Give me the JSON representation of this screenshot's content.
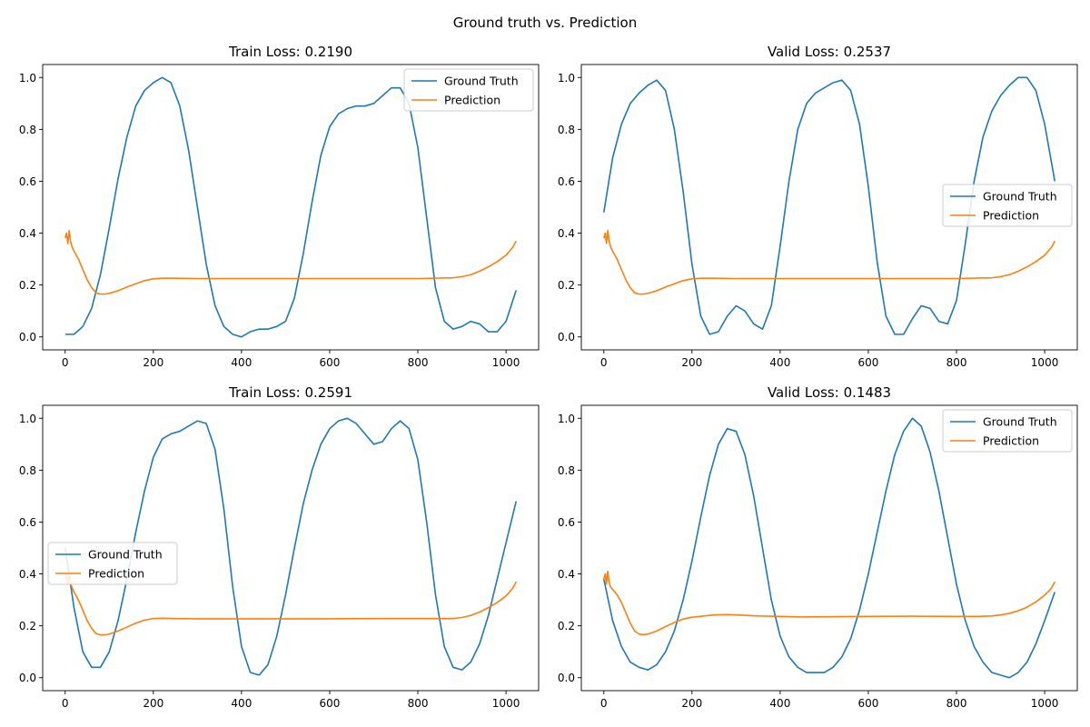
{
  "figure": {
    "suptitle": "Ground truth vs. Prediction",
    "colors": {
      "ground_truth": "#1f77b4",
      "prediction": "#ff7f0e"
    }
  },
  "chart_data": [
    {
      "type": "line",
      "title": "Train Loss: 0.2190",
      "xlim": [
        -51,
        1074
      ],
      "ylim": [
        -0.05,
        1.05
      ],
      "xticks": [
        0,
        200,
        400,
        600,
        800,
        1000
      ],
      "yticks": [
        0.0,
        0.2,
        0.4,
        0.6,
        0.8,
        1.0
      ],
      "xtick_labels": [
        "0",
        "200",
        "400",
        "600",
        "800",
        "1000"
      ],
      "ytick_labels": [
        "0.0",
        "0.2",
        "0.4",
        "0.6",
        "0.8",
        "1.0"
      ],
      "legend": "upper right",
      "series": [
        {
          "name": "Ground Truth",
          "color": "#1f77b4",
          "x": [
            0,
            20,
            40,
            60,
            80,
            100,
            120,
            140,
            160,
            180,
            200,
            220,
            240,
            260,
            280,
            300,
            320,
            340,
            360,
            380,
            400,
            420,
            440,
            460,
            480,
            500,
            520,
            540,
            560,
            580,
            600,
            620,
            640,
            660,
            680,
            700,
            720,
            740,
            760,
            780,
            800,
            820,
            840,
            860,
            880,
            900,
            920,
            940,
            960,
            980,
            1000,
            1023
          ],
          "y": [
            0.01,
            0.01,
            0.04,
            0.11,
            0.24,
            0.42,
            0.61,
            0.77,
            0.89,
            0.95,
            0.98,
            1.0,
            0.98,
            0.89,
            0.72,
            0.5,
            0.28,
            0.12,
            0.04,
            0.01,
            0.0,
            0.02,
            0.03,
            0.03,
            0.04,
            0.06,
            0.15,
            0.32,
            0.52,
            0.7,
            0.81,
            0.86,
            0.88,
            0.89,
            0.89,
            0.9,
            0.93,
            0.96,
            0.96,
            0.9,
            0.73,
            0.46,
            0.19,
            0.06,
            0.03,
            0.04,
            0.06,
            0.05,
            0.02,
            0.02,
            0.06,
            0.18
          ]
        },
        {
          "name": "Prediction",
          "color": "#ff7f0e",
          "x": [
            0,
            3,
            6,
            9,
            12,
            15,
            20,
            30,
            40,
            50,
            60,
            70,
            80,
            90,
            100,
            120,
            140,
            160,
            180,
            200,
            220,
            250,
            300,
            400,
            500,
            600,
            700,
            800,
            880,
            900,
            920,
            940,
            960,
            980,
            1000,
            1010,
            1015,
            1020,
            1023
          ],
          "y": [
            0.38,
            0.4,
            0.36,
            0.41,
            0.37,
            0.35,
            0.33,
            0.3,
            0.26,
            0.22,
            0.19,
            0.17,
            0.165,
            0.165,
            0.168,
            0.178,
            0.192,
            0.205,
            0.217,
            0.224,
            0.226,
            0.226,
            0.225,
            0.225,
            0.225,
            0.225,
            0.225,
            0.225,
            0.228,
            0.232,
            0.24,
            0.253,
            0.27,
            0.29,
            0.315,
            0.335,
            0.345,
            0.36,
            0.37
          ]
        }
      ]
    },
    {
      "type": "line",
      "title": "Valid Loss: 0.2537",
      "xlim": [
        -51,
        1074
      ],
      "ylim": [
        -0.05,
        1.05
      ],
      "xticks": [
        0,
        200,
        400,
        600,
        800,
        1000
      ],
      "yticks": [
        0.0,
        0.2,
        0.4,
        0.6,
        0.8,
        1.0
      ],
      "xtick_labels": [
        "0",
        "200",
        "400",
        "600",
        "800",
        "1000"
      ],
      "ytick_labels": [
        "0.0",
        "0.2",
        "0.4",
        "0.6",
        "0.8",
        "1.0"
      ],
      "legend": "center right",
      "series": [
        {
          "name": "Ground Truth",
          "color": "#1f77b4",
          "x": [
            0,
            20,
            40,
            60,
            80,
            100,
            120,
            140,
            160,
            180,
            200,
            220,
            240,
            260,
            280,
            300,
            320,
            340,
            360,
            380,
            400,
            420,
            440,
            460,
            480,
            500,
            520,
            540,
            560,
            580,
            600,
            620,
            640,
            660,
            680,
            700,
            720,
            740,
            760,
            780,
            800,
            820,
            840,
            860,
            880,
            900,
            920,
            940,
            960,
            980,
            1000,
            1023
          ],
          "y": [
            0.48,
            0.69,
            0.82,
            0.9,
            0.94,
            0.97,
            0.99,
            0.95,
            0.8,
            0.56,
            0.28,
            0.08,
            0.01,
            0.02,
            0.08,
            0.12,
            0.1,
            0.05,
            0.03,
            0.12,
            0.35,
            0.6,
            0.8,
            0.9,
            0.94,
            0.96,
            0.98,
            0.99,
            0.95,
            0.82,
            0.58,
            0.29,
            0.08,
            0.01,
            0.01,
            0.07,
            0.12,
            0.11,
            0.06,
            0.05,
            0.14,
            0.36,
            0.6,
            0.77,
            0.87,
            0.93,
            0.97,
            1.0,
            1.0,
            0.95,
            0.82,
            0.6
          ]
        },
        {
          "name": "Prediction",
          "color": "#ff7f0e",
          "x": [
            0,
            3,
            6,
            9,
            12,
            15,
            20,
            30,
            40,
            50,
            60,
            70,
            80,
            90,
            100,
            120,
            140,
            160,
            180,
            200,
            220,
            250,
            300,
            400,
            500,
            600,
            700,
            800,
            880,
            900,
            920,
            940,
            960,
            980,
            1000,
            1010,
            1015,
            1020,
            1023
          ],
          "y": [
            0.38,
            0.4,
            0.36,
            0.41,
            0.37,
            0.35,
            0.33,
            0.3,
            0.26,
            0.22,
            0.19,
            0.17,
            0.165,
            0.165,
            0.168,
            0.178,
            0.192,
            0.205,
            0.217,
            0.224,
            0.226,
            0.226,
            0.225,
            0.225,
            0.225,
            0.225,
            0.225,
            0.225,
            0.228,
            0.232,
            0.24,
            0.253,
            0.27,
            0.29,
            0.315,
            0.335,
            0.345,
            0.36,
            0.37
          ]
        }
      ]
    },
    {
      "type": "line",
      "title": "Train Loss: 0.2591",
      "xlim": [
        -51,
        1074
      ],
      "ylim": [
        -0.05,
        1.05
      ],
      "xticks": [
        0,
        200,
        400,
        600,
        800,
        1000
      ],
      "yticks": [
        0.0,
        0.2,
        0.4,
        0.6,
        0.8,
        1.0
      ],
      "xtick_labels": [
        "0",
        "200",
        "400",
        "600",
        "800",
        "1000"
      ],
      "ytick_labels": [
        "0.0",
        "0.2",
        "0.4",
        "0.6",
        "0.8",
        "1.0"
      ],
      "legend": "center left",
      "series": [
        {
          "name": "Ground Truth",
          "color": "#1f77b4",
          "x": [
            0,
            20,
            40,
            60,
            80,
            100,
            120,
            140,
            160,
            180,
            200,
            220,
            240,
            260,
            280,
            300,
            320,
            340,
            360,
            380,
            400,
            420,
            440,
            460,
            480,
            500,
            520,
            540,
            560,
            580,
            600,
            620,
            640,
            660,
            680,
            700,
            720,
            740,
            760,
            780,
            800,
            820,
            840,
            860,
            880,
            900,
            920,
            940,
            960,
            980,
            1000,
            1023
          ],
          "y": [
            0.5,
            0.27,
            0.1,
            0.04,
            0.04,
            0.1,
            0.22,
            0.38,
            0.56,
            0.72,
            0.85,
            0.92,
            0.94,
            0.95,
            0.97,
            0.99,
            0.98,
            0.88,
            0.65,
            0.35,
            0.12,
            0.02,
            0.01,
            0.05,
            0.16,
            0.32,
            0.5,
            0.67,
            0.8,
            0.9,
            0.96,
            0.99,
            1.0,
            0.98,
            0.94,
            0.9,
            0.91,
            0.96,
            0.99,
            0.96,
            0.84,
            0.6,
            0.32,
            0.12,
            0.04,
            0.03,
            0.06,
            0.13,
            0.24,
            0.38,
            0.52,
            0.68
          ]
        },
        {
          "name": "Prediction",
          "color": "#ff7f0e",
          "x": [
            0,
            3,
            6,
            9,
            12,
            15,
            20,
            30,
            40,
            50,
            60,
            70,
            80,
            90,
            100,
            120,
            140,
            160,
            180,
            200,
            220,
            250,
            300,
            400,
            500,
            600,
            700,
            800,
            880,
            900,
            920,
            940,
            960,
            980,
            1000,
            1010,
            1015,
            1020,
            1023
          ],
          "y": [
            0.38,
            0.4,
            0.36,
            0.41,
            0.37,
            0.35,
            0.33,
            0.3,
            0.26,
            0.22,
            0.19,
            0.17,
            0.165,
            0.165,
            0.168,
            0.18,
            0.195,
            0.21,
            0.222,
            0.228,
            0.229,
            0.228,
            0.227,
            0.227,
            0.227,
            0.227,
            0.228,
            0.228,
            0.228,
            0.232,
            0.24,
            0.253,
            0.27,
            0.29,
            0.315,
            0.335,
            0.345,
            0.36,
            0.37
          ]
        }
      ]
    },
    {
      "type": "line",
      "title": "Valid Loss: 0.1483",
      "xlim": [
        -51,
        1074
      ],
      "ylim": [
        -0.05,
        1.05
      ],
      "xticks": [
        0,
        200,
        400,
        600,
        800,
        1000
      ],
      "yticks": [
        0.0,
        0.2,
        0.4,
        0.6,
        0.8,
        1.0
      ],
      "xtick_labels": [
        "0",
        "200",
        "400",
        "600",
        "800",
        "1000"
      ],
      "ytick_labels": [
        "0.0",
        "0.2",
        "0.4",
        "0.6",
        "0.8",
        "1.0"
      ],
      "legend": "upper right",
      "series": [
        {
          "name": "Ground Truth",
          "color": "#1f77b4",
          "x": [
            0,
            20,
            40,
            60,
            80,
            100,
            120,
            140,
            160,
            180,
            200,
            220,
            240,
            260,
            280,
            300,
            320,
            340,
            360,
            380,
            400,
            420,
            440,
            460,
            480,
            500,
            520,
            540,
            560,
            580,
            600,
            620,
            640,
            660,
            680,
            700,
            720,
            740,
            760,
            780,
            800,
            820,
            840,
            860,
            880,
            900,
            920,
            940,
            960,
            980,
            1000,
            1023
          ],
          "y": [
            0.38,
            0.22,
            0.12,
            0.06,
            0.04,
            0.03,
            0.05,
            0.1,
            0.18,
            0.3,
            0.45,
            0.62,
            0.78,
            0.9,
            0.96,
            0.95,
            0.86,
            0.7,
            0.5,
            0.3,
            0.16,
            0.08,
            0.04,
            0.02,
            0.02,
            0.02,
            0.04,
            0.08,
            0.15,
            0.26,
            0.4,
            0.56,
            0.72,
            0.86,
            0.95,
            1.0,
            0.97,
            0.87,
            0.72,
            0.54,
            0.36,
            0.22,
            0.12,
            0.06,
            0.02,
            0.01,
            0.0,
            0.02,
            0.06,
            0.13,
            0.22,
            0.33
          ]
        },
        {
          "name": "Prediction",
          "color": "#ff7f0e",
          "x": [
            0,
            3,
            6,
            9,
            12,
            15,
            20,
            30,
            40,
            50,
            60,
            70,
            80,
            90,
            100,
            120,
            140,
            160,
            180,
            200,
            250,
            280,
            300,
            350,
            400,
            450,
            500,
            600,
            700,
            800,
            850,
            880,
            900,
            920,
            940,
            960,
            980,
            1000,
            1010,
            1015,
            1020,
            1023
          ],
          "y": [
            0.38,
            0.4,
            0.36,
            0.41,
            0.37,
            0.35,
            0.34,
            0.32,
            0.29,
            0.25,
            0.21,
            0.18,
            0.168,
            0.166,
            0.168,
            0.18,
            0.197,
            0.213,
            0.226,
            0.233,
            0.242,
            0.243,
            0.242,
            0.238,
            0.236,
            0.234,
            0.235,
            0.236,
            0.237,
            0.236,
            0.236,
            0.238,
            0.242,
            0.248,
            0.258,
            0.272,
            0.292,
            0.318,
            0.335,
            0.345,
            0.36,
            0.37
          ]
        }
      ]
    }
  ]
}
